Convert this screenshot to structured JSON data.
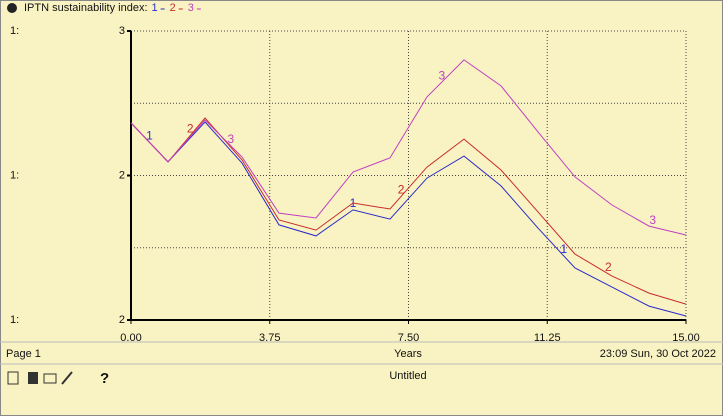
{
  "chart_data": {
    "type": "line",
    "title": "IPTN sustainability index:",
    "x_label": "Years",
    "page_label": "Page 1",
    "timestamp": "23:09   Sun, 30 Oct 2022",
    "document_name": "Untitled",
    "help": "?",
    "axis_prefixes": [
      "1:",
      "1:",
      "1:"
    ],
    "x": [
      0,
      1,
      2,
      3,
      4,
      5,
      6,
      7,
      8,
      9,
      10,
      11,
      12,
      13,
      14,
      15
    ],
    "series": [
      {
        "name": "1",
        "color": "#2b2bc8",
        "values": [
          2.682,
          2.547,
          2.685,
          2.543,
          2.329,
          2.291,
          2.381,
          2.349,
          2.491,
          2.567,
          2.464,
          2.318,
          2.18,
          2.114,
          2.048,
          2.014
        ]
      },
      {
        "name": "2",
        "color": "#c82b2b",
        "values": [
          2.682,
          2.547,
          2.699,
          2.554,
          2.346,
          2.311,
          2.405,
          2.384,
          2.529,
          2.626,
          2.519,
          2.374,
          2.228,
          2.152,
          2.093,
          2.055
        ]
      },
      {
        "name": "3",
        "color": "#c040c0",
        "values": [
          2.682,
          2.547,
          2.692,
          2.564,
          2.37,
          2.353,
          2.512,
          2.561,
          2.772,
          2.9,
          2.81,
          2.651,
          2.495,
          2.398,
          2.325,
          2.294
        ]
      }
    ],
    "xlim": [
      0,
      15
    ],
    "xticks": [
      {
        "value": 0,
        "label": "0.00"
      },
      {
        "value": 3.75,
        "label": "3.75"
      },
      {
        "value": 7.5,
        "label": "7.50"
      },
      {
        "value": 11.25,
        "label": "11.25"
      },
      {
        "value": 15,
        "label": "15.00"
      }
    ],
    "ylim": [
      2,
      3
    ],
    "yticks": [
      {
        "value": 2,
        "label": "2"
      },
      {
        "value": 2.5,
        "label": "2"
      },
      3
    ],
    "grid": true
  }
}
